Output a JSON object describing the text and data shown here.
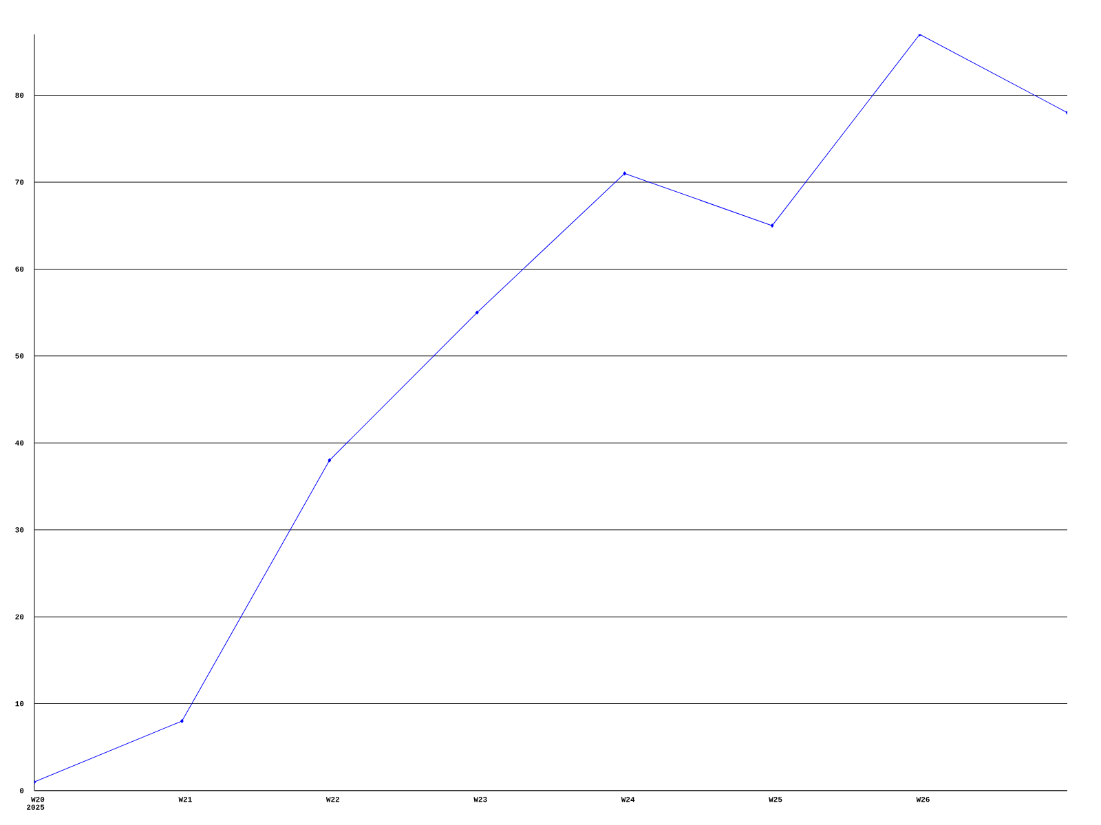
{
  "chart_data": {
    "type": "line",
    "categories": [
      "W20",
      "W21",
      "W22",
      "W23",
      "W24",
      "W25",
      "W26",
      null
    ],
    "series": [
      {
        "color": "#0000ff",
        "values": [
          1,
          8,
          38,
          55,
          71,
          65,
          87,
          78
        ]
      }
    ],
    "ylim": [
      0,
      87
    ],
    "yticks": [
      0,
      10,
      20,
      30,
      40,
      50,
      60,
      70,
      80
    ],
    "grid": "y",
    "marker": "diamond",
    "line_style": "solid",
    "annotations": [
      "2025"
    ]
  }
}
